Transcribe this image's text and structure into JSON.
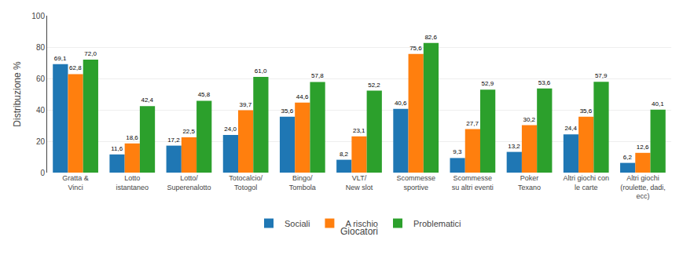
{
  "chart_data": {
    "type": "bar",
    "categories": [
      "Gratta &\nVinci",
      "Lotto\nistantaneo",
      "Lotto/\nSuperenalotto",
      "Totocalcio/\nTotogol",
      "Bingo/\nTombola",
      "VLT/\nNew slot",
      "Scommesse\nsportive",
      "Scommesse\nsu altri eventi",
      "Poker\nTexano",
      "Altri giochi con\nle carte",
      "Altri giochi\n(roulette, dadi,\necc)"
    ],
    "series": [
      {
        "name": "Sociali",
        "values": [
          69.1,
          11.6,
          17.2,
          24.0,
          35.6,
          8.2,
          40.6,
          9.3,
          13.2,
          24.4,
          6.2
        ],
        "value_labels": [
          "69,1",
          "11,6",
          "17,2",
          "24,0",
          "35,6",
          "8,2",
          "40,6",
          "9,3",
          "13,2",
          "24,4",
          "6,2"
        ]
      },
      {
        "name": "A rischio",
        "values": [
          62.8,
          18.6,
          22.5,
          39.7,
          44.6,
          23.1,
          75.6,
          27.7,
          30.2,
          35.6,
          12.6
        ],
        "value_labels": [
          "62,8",
          "18,6",
          "22,5",
          "39,7",
          "44,6",
          "23,1",
          "75,6",
          "27,7",
          "30,2",
          "35,6",
          "12,6"
        ]
      },
      {
        "name": "Problematici",
        "values": [
          72.0,
          42.4,
          45.8,
          61.0,
          57.8,
          52.2,
          82.6,
          52.9,
          53.6,
          57.9,
          40.1
        ],
        "value_labels": [
          "72,0",
          "42,4",
          "45,8",
          "61,0",
          "57,8",
          "52,2",
          "82,6",
          "52,9",
          "53,6",
          "57,9",
          "40,1"
        ]
      }
    ],
    "xlabel": "Giocatori",
    "ylabel": "Distribuzione %",
    "ylim": [
      0,
      100
    ],
    "yticks": [
      0,
      20,
      40,
      60,
      80,
      100
    ],
    "grid": true,
    "data_labels": true,
    "legend": "bottom"
  }
}
